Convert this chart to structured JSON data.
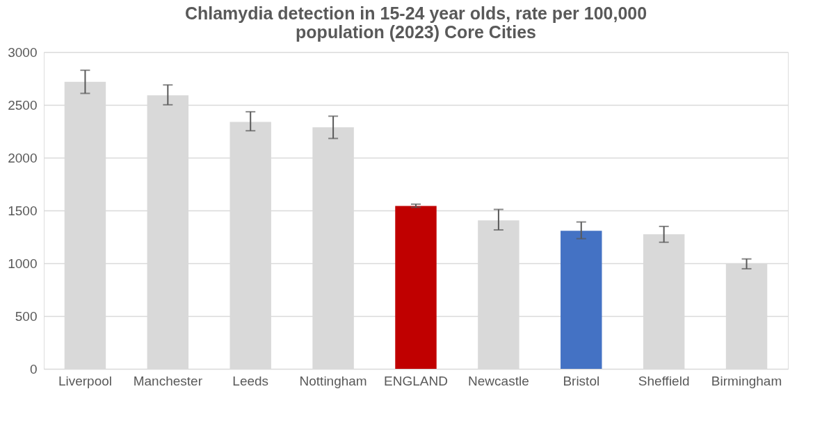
{
  "chart_data": {
    "type": "bar",
    "title": "Chlamydia detection in 15-24 year olds, rate per 100,000 population (2023) Core Cities",
    "categories": [
      "Liverpool",
      "Manchester",
      "Leeds",
      "Nottingham",
      "ENGLAND",
      "Newcastle",
      "Bristol",
      "Sheffield",
      "Birmingham"
    ],
    "values": [
      2718,
      2591,
      2338,
      2288,
      1542,
      1407,
      1308,
      1275,
      995
    ],
    "colors": [
      "#d9d9d9",
      "#d9d9d9",
      "#d9d9d9",
      "#d9d9d9",
      "#c00000",
      "#d9d9d9",
      "#4472c4",
      "#d9d9d9",
      "#d9d9d9"
    ],
    "errors": [
      [
        2609,
        2828
      ],
      [
        2501,
        2689
      ],
      [
        2255,
        2435
      ],
      [
        2182,
        2393
      ],
      [
        1530,
        1560
      ],
      [
        1316,
        1510
      ],
      [
        1233,
        1391
      ],
      [
        1199,
        1349
      ],
      [
        948,
        1041
      ]
    ],
    "ylim": [
      0,
      3000
    ],
    "yticks": [
      0,
      500,
      1000,
      1500,
      2000,
      2500,
      3000
    ],
    "grid": "y"
  }
}
